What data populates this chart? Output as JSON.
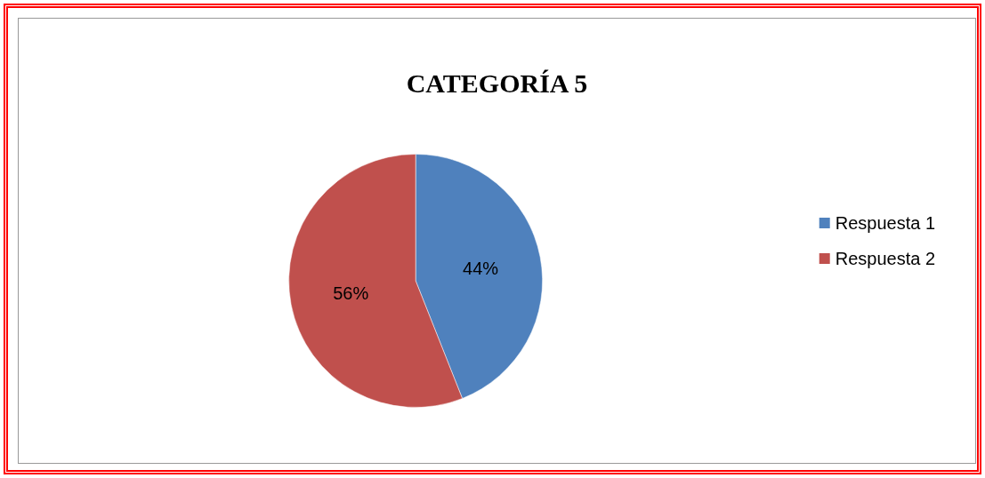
{
  "chart_data": {
    "type": "pie",
    "title": "CATEGORÍA 5",
    "categories": [
      "Respuesta 1",
      "Respuesta 2"
    ],
    "values": [
      44,
      56
    ],
    "colors": [
      "#4f81bd",
      "#c0504d"
    ],
    "value_labels": [
      "44%",
      "56%"
    ],
    "legend": "right"
  }
}
